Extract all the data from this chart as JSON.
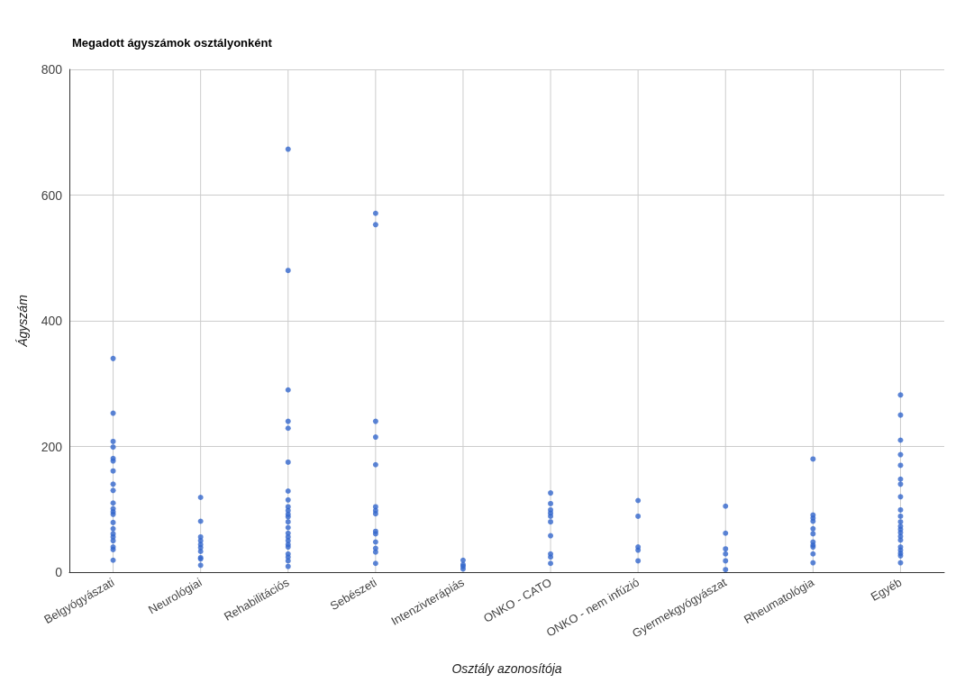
{
  "chart_data": {
    "type": "scatter",
    "title": "Megadott ágyszámok osztályonként",
    "xlabel": "Osztály azonosítója",
    "ylabel": "Ágyszám",
    "categories": [
      "Belgyógyászati",
      "Neurológiai",
      "Rehabilitációs",
      "Sebészeti",
      "Intenzivterápiás",
      "ONKO - CATO",
      "ONKO - nem infúzió",
      "Gyermekgyógyászat",
      "Rheumatológia",
      "Egyéb"
    ],
    "series": [
      {
        "color": "#3366cc",
        "x": [
          "Belgyógyászati",
          "Belgyógyászati",
          "Belgyógyászati",
          "Belgyógyászati",
          "Belgyógyászati",
          "Belgyógyászati",
          "Belgyógyászati",
          "Belgyógyászati",
          "Belgyógyászati",
          "Belgyógyászati",
          "Belgyógyászati",
          "Belgyógyászati",
          "Belgyógyászati",
          "Belgyógyászati",
          "Belgyógyászati",
          "Belgyógyászati",
          "Belgyógyászati",
          "Belgyógyászati",
          "Belgyógyászati",
          "Belgyógyászati",
          "Belgyógyászati",
          "Neurológiai",
          "Neurológiai",
          "Neurológiai",
          "Neurológiai",
          "Neurológiai",
          "Neurológiai",
          "Neurológiai",
          "Neurológiai",
          "Neurológiai",
          "Neurológiai",
          "Rehabilitációs",
          "Rehabilitációs",
          "Rehabilitációs",
          "Rehabilitációs",
          "Rehabilitációs",
          "Rehabilitációs",
          "Rehabilitációs",
          "Rehabilitációs",
          "Rehabilitációs",
          "Rehabilitációs",
          "Rehabilitációs",
          "Rehabilitációs",
          "Rehabilitációs",
          "Rehabilitációs",
          "Rehabilitációs",
          "Rehabilitációs",
          "Rehabilitációs",
          "Rehabilitációs",
          "Rehabilitációs",
          "Rehabilitációs",
          "Rehabilitációs",
          "Rehabilitációs",
          "Rehabilitációs",
          "Sebészeti",
          "Sebészeti",
          "Sebészeti",
          "Sebészeti",
          "Sebészeti",
          "Sebészeti",
          "Sebészeti",
          "Sebészeti",
          "Sebészeti",
          "Sebészeti",
          "Sebészeti",
          "Sebészeti",
          "Sebészeti",
          "Sebészeti",
          "Intenzivterápiás",
          "Intenzivterápiás",
          "Intenzivterápiás",
          "Intenzivterápiás",
          "ONKO - CATO",
          "ONKO - CATO",
          "ONKO - CATO",
          "ONKO - CATO",
          "ONKO - CATO",
          "ONKO - CATO",
          "ONKO - CATO",
          "ONKO - CATO",
          "ONKO - CATO",
          "ONKO - CATO",
          "ONKO - nem infúzió",
          "ONKO - nem infúzió",
          "ONKO - nem infúzió",
          "ONKO - nem infúzió",
          "ONKO - nem infúzió",
          "Gyermekgyógyászat",
          "Gyermekgyógyászat",
          "Gyermekgyógyászat",
          "Gyermekgyógyászat",
          "Gyermekgyógyászat",
          "Gyermekgyógyászat",
          "Rheumatológia",
          "Rheumatológia",
          "Rheumatológia",
          "Rheumatológia",
          "Rheumatológia",
          "Rheumatológia",
          "Rheumatológia",
          "Rheumatológia",
          "Rheumatológia",
          "Rheumatológia",
          "Rheumatológia",
          "Egyéb",
          "Egyéb",
          "Egyéb",
          "Egyéb",
          "Egyéb",
          "Egyéb",
          "Egyéb",
          "Egyéb",
          "Egyéb",
          "Egyéb",
          "Egyéb",
          "Egyéb",
          "Egyéb",
          "Egyéb",
          "Egyéb",
          "Egyéb",
          "Egyéb",
          "Egyéb",
          "Egyéb",
          "Egyéb",
          "Egyéb"
        ],
        "values": [
          340,
          253,
          208,
          199,
          181,
          177,
          161,
          140,
          130,
          110,
          101,
          96,
          92,
          79,
          69,
          61,
          56,
          50,
          40,
          36,
          19,
          119,
          81,
          56,
          50,
          44,
          39,
          33,
          23,
          21,
          11,
          673,
          480,
          290,
          240,
          229,
          175,
          129,
          115,
          104,
          98,
          92,
          88,
          80,
          71,
          62,
          56,
          50,
          44,
          40,
          29,
          24,
          18,
          9,
          571,
          553,
          240,
          215,
          171,
          104,
          98,
          93,
          65,
          61,
          48,
          38,
          32,
          14,
          19,
          12,
          9,
          5,
          126,
          109,
          99,
          94,
          89,
          80,
          58,
          29,
          24,
          14,
          114,
          89,
          40,
          35,
          18,
          105,
          62,
          37,
          29,
          18,
          4,
          180,
          91,
          86,
          81,
          69,
          61,
          48,
          43,
          40,
          29,
          15,
          282,
          250,
          210,
          187,
          170,
          148,
          140,
          120,
          99,
          89,
          80,
          73,
          68,
          63,
          57,
          51,
          40,
          35,
          30,
          26,
          15
        ]
      }
    ],
    "ylim": [
      0,
      800
    ],
    "yticks": [
      0,
      200,
      400,
      600,
      800
    ],
    "grid": true,
    "marker": "circle"
  }
}
